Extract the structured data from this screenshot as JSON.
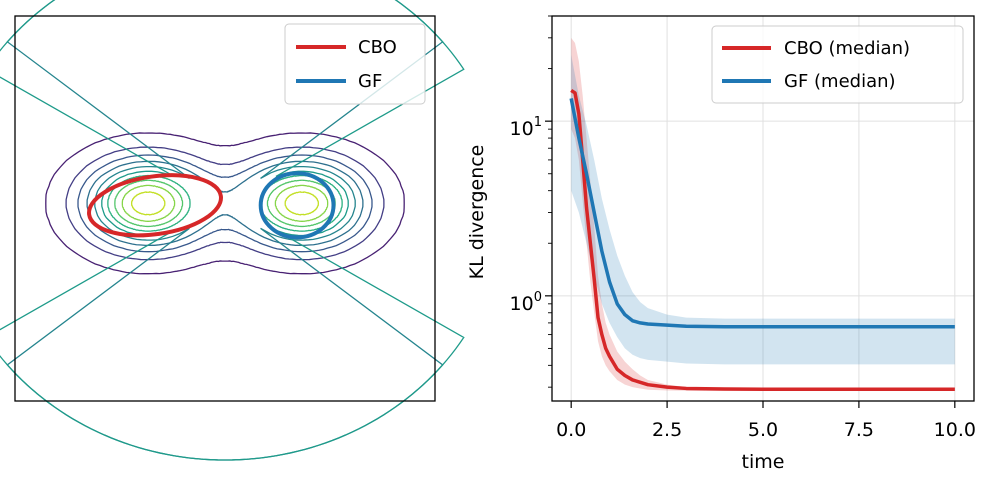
{
  "colors": {
    "cbo": "#d62728",
    "gf": "#1f77b4",
    "grid": "#e0e0e0",
    "contour_levels": [
      "#482173",
      "#433e85",
      "#38588c",
      "#2d708e",
      "#25858e",
      "#1e9b8a",
      "#2ab07f",
      "#52c569",
      "#86d549",
      "#c2df23"
    ]
  },
  "chart_data": [
    {
      "type": "contour",
      "title": "",
      "xlabel": "",
      "ylabel": "",
      "xlim": [
        -3,
        3
      ],
      "ylim": [
        -3,
        3
      ],
      "axes_visible": false,
      "grid": false,
      "legend": {
        "placement": "top-right",
        "entries": [
          "CBO",
          "GF"
        ]
      },
      "density": {
        "components": [
          {
            "mean": [
              -1.1,
              0.08
            ],
            "sx": 0.6,
            "sy": 0.45
          },
          {
            "mean": [
              1.1,
              0.08
            ],
            "sx": 0.6,
            "sy": 0.45
          }
        ],
        "num_levels": 10
      },
      "series": [
        {
          "name": "CBO",
          "shape": "ellipse",
          "center": [
            -1.0,
            0.05
          ],
          "rx": 0.95,
          "ry": 0.45,
          "rotation_deg": -8
        },
        {
          "name": "GF",
          "shape": "ellipse",
          "center": [
            1.03,
            0.05
          ],
          "rx": 0.52,
          "ry": 0.5,
          "rotation_deg": 0
        }
      ]
    },
    {
      "type": "line",
      "title": "",
      "xlabel": "time",
      "ylabel": "KL divergence",
      "xlim": [
        -0.5,
        10.5
      ],
      "ylim": [
        0.25,
        40
      ],
      "yscale": "log",
      "grid": true,
      "legend": {
        "placement": "top-right",
        "entries": [
          "CBO (median)",
          "GF (median)"
        ]
      },
      "x_ticks": [
        "0.0",
        "2.5",
        "5.0",
        "7.5",
        "10.0"
      ],
      "y_ticks": [
        {
          "base": "10",
          "exp": "0",
          "value": 1
        },
        {
          "base": "10",
          "exp": "1",
          "value": 10
        }
      ],
      "series": [
        {
          "name": "CBO (median)",
          "x": [
            0.0,
            0.1,
            0.2,
            0.3,
            0.4,
            0.5,
            0.6,
            0.7,
            0.8,
            0.9,
            1.0,
            1.2,
            1.4,
            1.6,
            1.8,
            2.0,
            2.5,
            3.0,
            4.0,
            5.0,
            7.5,
            10.0
          ],
          "y": [
            15,
            14.5,
            11,
            6,
            3.2,
            2.0,
            1.25,
            0.75,
            0.6,
            0.5,
            0.45,
            0.38,
            0.35,
            0.33,
            0.32,
            0.31,
            0.3,
            0.295,
            0.293,
            0.292,
            0.292,
            0.292
          ],
          "band_lower": [
            9,
            8,
            6,
            3.5,
            2.0,
            1.2,
            0.8,
            0.55,
            0.45,
            0.4,
            0.37,
            0.33,
            0.31,
            0.3,
            0.295,
            0.29,
            0.287,
            0.286,
            0.285,
            0.285,
            0.285,
            0.285
          ],
          "band_upper": [
            30,
            28,
            22,
            14,
            8,
            4.5,
            2.5,
            1.3,
            0.9,
            0.7,
            0.6,
            0.48,
            0.42,
            0.38,
            0.35,
            0.33,
            0.31,
            0.3,
            0.297,
            0.296,
            0.296,
            0.296
          ]
        },
        {
          "name": "GF (median)",
          "x": [
            0.0,
            0.2,
            0.4,
            0.6,
            0.8,
            1.0,
            1.2,
            1.4,
            1.6,
            1.8,
            2.0,
            2.5,
            3.0,
            4.0,
            5.0,
            7.5,
            10.0
          ],
          "y": [
            13.5,
            8.0,
            5.0,
            3.0,
            1.8,
            1.2,
            0.9,
            0.78,
            0.72,
            0.7,
            0.69,
            0.68,
            0.67,
            0.665,
            0.665,
            0.665,
            0.665
          ],
          "band_lower": [
            4.0,
            3.0,
            2.0,
            1.3,
            0.9,
            0.7,
            0.58,
            0.5,
            0.46,
            0.44,
            0.43,
            0.42,
            0.41,
            0.405,
            0.405,
            0.405,
            0.405
          ],
          "band_upper": [
            24,
            14,
            9.5,
            6.0,
            3.6,
            2.4,
            1.7,
            1.3,
            1.05,
            0.92,
            0.85,
            0.78,
            0.75,
            0.74,
            0.74,
            0.74,
            0.74
          ]
        }
      ]
    }
  ]
}
